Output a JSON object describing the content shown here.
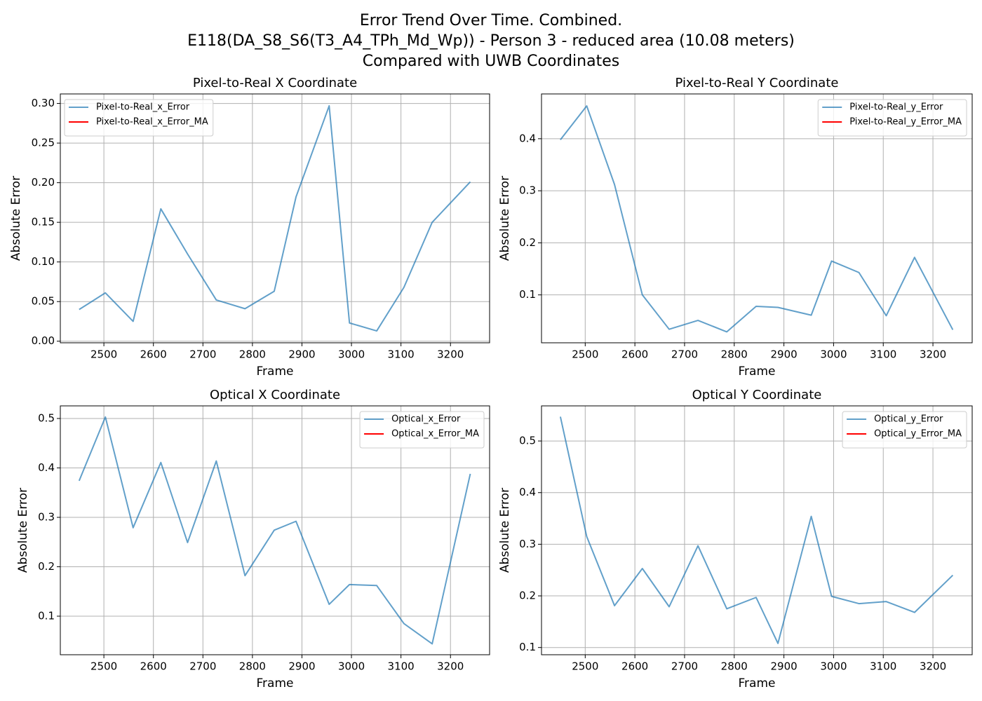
{
  "title": [
    "Error Trend Over Time. Combined.",
    "E118(DA_S8_S6(T3_A4_TPh_Md_Wp)) - Person 3 - reduced area (10.08 meters)",
    "Compared with UWB Coordinates"
  ],
  "chart_data": [
    {
      "type": "line",
      "title": "Pixel-to-Real X Coordinate",
      "xlabel": "Frame",
      "ylabel": "Absolute Error",
      "x": [
        2450,
        2503,
        2559,
        2615,
        2669,
        2727,
        2785,
        2844,
        2888,
        2955,
        2996,
        3051,
        3106,
        3163,
        3240
      ],
      "series": [
        {
          "name": "Pixel-to-Real_x_Error",
          "color": "#1f77b4",
          "values": [
            0.04,
            0.061,
            0.025,
            0.167,
            0.11,
            0.052,
            0.041,
            0.063,
            0.182,
            0.297,
            0.023,
            0.013,
            0.068,
            0.15,
            0.201
          ]
        },
        {
          "name": "Pixel-to-Real_x_Error_MA",
          "color": "#ff0000",
          "values": [
            null,
            null,
            null,
            null,
            null,
            null,
            null,
            null,
            null,
            null,
            null,
            null,
            null,
            null,
            null
          ]
        }
      ],
      "xlim": [
        2412,
        3279
      ],
      "xticks": [
        2500,
        2600,
        2700,
        2800,
        2900,
        3000,
        3100,
        3200
      ],
      "ylim": [
        -0.002,
        0.312
      ],
      "yticks": [
        {
          "value": 0,
          "label": "0.00"
        },
        0.05,
        {
          "value": 0.1,
          "label": "0.10"
        },
        0.15,
        {
          "value": 0.2,
          "label": "0.20"
        },
        0.25,
        {
          "value": 0.3,
          "label": "0.30"
        }
      ],
      "grid": true,
      "legend": "upper left"
    },
    {
      "type": "line",
      "title": "Pixel-to-Real Y Coordinate",
      "xlabel": "Frame",
      "ylabel": "Absolute Error",
      "x": [
        2450,
        2503,
        2559,
        2615,
        2669,
        2727,
        2785,
        2844,
        2888,
        2955,
        2996,
        3051,
        3106,
        3163,
        3240
      ],
      "series": [
        {
          "name": "Pixel-to-Real_y_Error",
          "color": "#1f77b4",
          "values": [
            0.398,
            0.463,
            0.312,
            0.1,
            0.034,
            0.051,
            0.029,
            0.078,
            0.076,
            0.061,
            0.165,
            0.143,
            0.06,
            0.172,
            0.033
          ]
        },
        {
          "name": "Pixel-to-Real_y_Error_MA",
          "color": "#ff0000",
          "values": [
            null,
            null,
            null,
            null,
            null,
            null,
            null,
            null,
            null,
            null,
            null,
            null,
            null,
            null,
            null
          ]
        }
      ],
      "xlim": [
        2412,
        3279
      ],
      "xticks": [
        2500,
        2600,
        2700,
        2800,
        2900,
        3000,
        3100,
        3200
      ],
      "ylim": [
        0.008,
        0.486
      ],
      "yticks": [
        0.1,
        0.2,
        0.3,
        0.4
      ],
      "grid": true,
      "legend": "upper right"
    },
    {
      "type": "line",
      "title": "Optical X Coordinate",
      "xlabel": "Frame",
      "ylabel": "Absolute Error",
      "x": [
        2450,
        2503,
        2559,
        2615,
        2669,
        2727,
        2785,
        2844,
        2888,
        2955,
        2996,
        3051,
        3106,
        3163,
        3240
      ],
      "series": [
        {
          "name": "Optical_x_Error",
          "color": "#1f77b4",
          "values": [
            0.374,
            0.503,
            0.279,
            0.411,
            0.249,
            0.414,
            0.182,
            0.274,
            0.292,
            0.124,
            0.164,
            0.162,
            0.085,
            0.044,
            0.388
          ]
        },
        {
          "name": "Optical_x_Error_MA",
          "color": "#ff0000",
          "values": [
            null,
            null,
            null,
            null,
            null,
            null,
            null,
            null,
            null,
            null,
            null,
            null,
            null,
            null,
            null
          ]
        }
      ],
      "xlim": [
        2412,
        3279
      ],
      "xticks": [
        2500,
        2600,
        2700,
        2800,
        2900,
        3000,
        3100,
        3200
      ],
      "ylim": [
        0.022,
        0.5255
      ],
      "yticks": [
        0.1,
        0.2,
        0.3,
        0.4,
        0.5
      ],
      "grid": true,
      "legend": "upper right"
    },
    {
      "type": "line",
      "title": "Optical Y Coordinate",
      "xlabel": "Frame",
      "ylabel": "Absolute Error",
      "x": [
        2450,
        2503,
        2559,
        2615,
        2669,
        2727,
        2785,
        2844,
        2888,
        2955,
        2996,
        3051,
        3106,
        3163,
        3240
      ],
      "series": [
        {
          "name": "Optical_y_Error",
          "color": "#1f77b4",
          "values": [
            0.547,
            0.315,
            0.181,
            0.253,
            0.179,
            0.297,
            0.175,
            0.197,
            0.108,
            0.354,
            0.199,
            0.185,
            0.189,
            0.168,
            0.24
          ]
        },
        {
          "name": "Optical_y_Error_MA",
          "color": "#ff0000",
          "values": [
            null,
            null,
            null,
            null,
            null,
            null,
            null,
            null,
            null,
            null,
            null,
            null,
            null,
            null,
            null
          ]
        }
      ],
      "xlim": [
        2412,
        3279
      ],
      "xticks": [
        2500,
        2600,
        2700,
        2800,
        2900,
        3000,
        3100,
        3200
      ],
      "ylim": [
        0.086,
        0.568
      ],
      "yticks": [
        0.1,
        0.2,
        0.3,
        0.4,
        0.5
      ],
      "grid": true,
      "legend": "upper right"
    }
  ]
}
